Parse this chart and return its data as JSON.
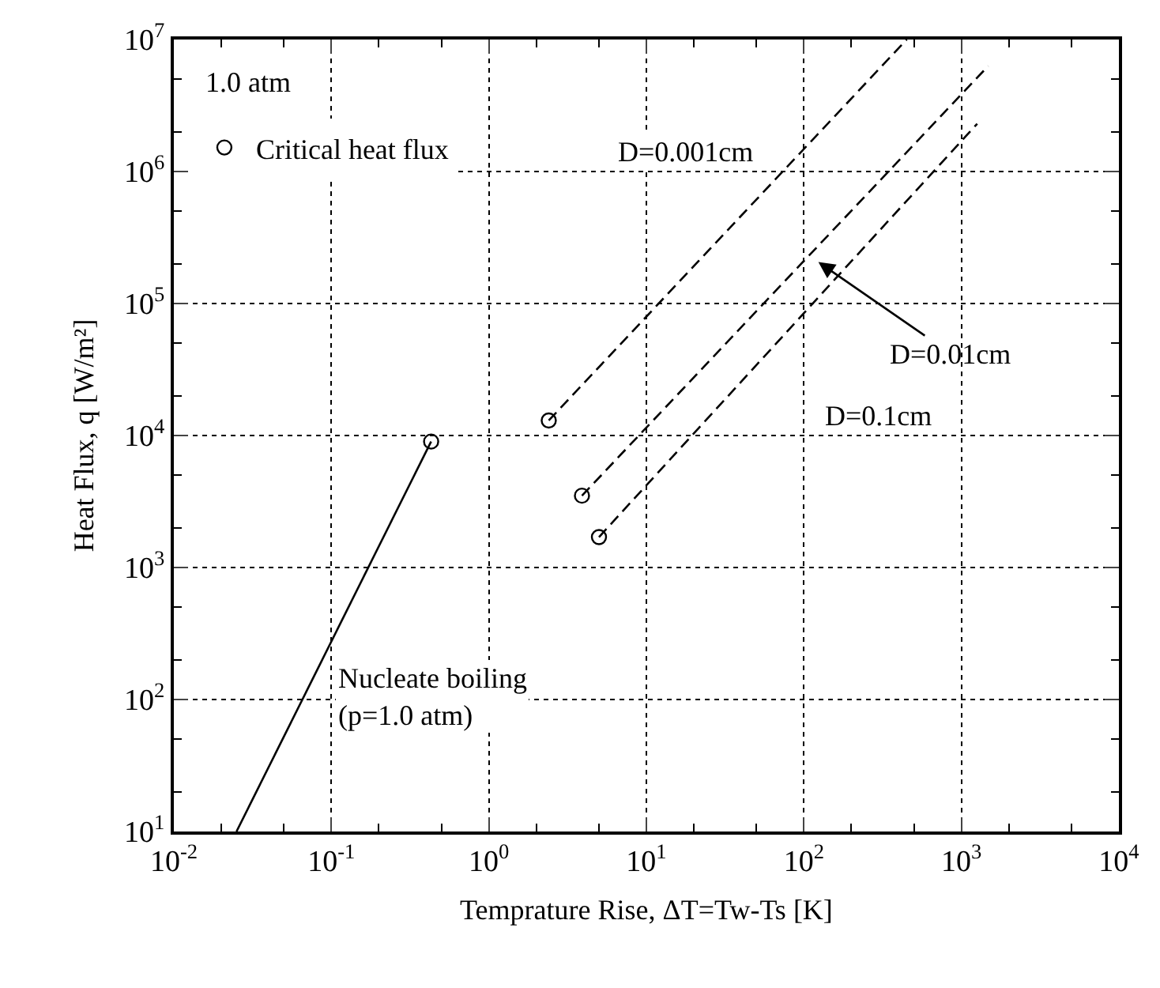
{
  "chart_data": {
    "type": "line",
    "xlabel": "Temprature Rise, ΔT=Tw-Ts [K]",
    "ylabel": "Heat Flux, q [W/m²]",
    "log": "xy",
    "grid": true,
    "legend": "top left",
    "line_style": "dashed",
    "xlim": [
      0.01,
      10000
    ],
    "ylim": [
      10,
      10000000
    ],
    "xticks": [
      {
        "value": 0.01,
        "label": "10$^{-2}$"
      },
      {
        "value": 0.1,
        "label": "10$^{-1}$"
      },
      {
        "value": 1,
        "label": "10$^{0}$"
      },
      {
        "value": 10,
        "label": "10$^{1}$"
      },
      {
        "value": 100,
        "label": "10$^{2}$"
      },
      {
        "value": 1000,
        "label": "10$^{3}$"
      },
      {
        "value": 10000,
        "label": "10$^{4}$"
      }
    ],
    "yticks": [
      {
        "value": 10,
        "label": "10$^{1}$"
      },
      {
        "value": 100,
        "label": "10$^{2}$"
      },
      {
        "value": 1000,
        "label": "10$^{3}$"
      },
      {
        "value": 10000,
        "label": "10$^{4}$"
      },
      {
        "value": 100000,
        "label": "10$^{5}$"
      },
      {
        "value": 1000000,
        "label": "10$^{6}$"
      },
      {
        "value": 10000000,
        "label": "10$^{7}$"
      }
    ],
    "series": [
      {
        "line_style": "solid",
        "color": "#000000",
        "x": [
          0.025,
          0.43
        ],
        "values": [
          10,
          9000
        ]
      },
      {
        "color": "#000000",
        "x": [
          2.4,
          450
        ],
        "values": [
          13000,
          10000000
        ]
      },
      {
        "color": "#000000",
        "x": [
          3.9,
          1480
        ],
        "values": [
          3500,
          6300000
        ]
      },
      {
        "color": "#000000",
        "x": [
          5,
          1260
        ],
        "values": [
          1700,
          2300000
        ]
      },
      {
        "type": "scatter",
        "name": "Critical heat flux",
        "marker": "circle",
        "color": "#000000",
        "x": [
          0.43,
          2.4,
          3.9,
          5
        ],
        "values": [
          9000,
          13000,
          3500,
          1700
        ]
      }
    ],
    "annotations": [
      "1.0 atm",
      "D=0.001cm",
      "D=0.01cm",
      "D=0.1cm",
      "Nucleate boiling\n(p=1.0 atm)"
    ]
  }
}
